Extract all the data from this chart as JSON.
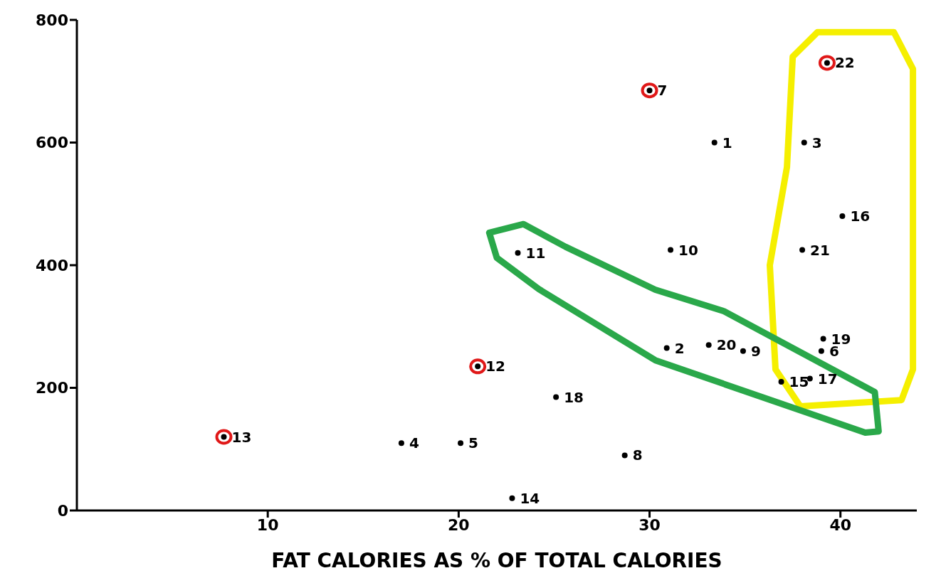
{
  "chart_data": {
    "type": "scatter",
    "xlabel": "FAT CALORIES AS % OF TOTAL CALORIES",
    "x": [
      33.4,
      30.9,
      38.1,
      17.0,
      20.1,
      39.0,
      30.0,
      28.7,
      34.9,
      31.1,
      23.1,
      21.0,
      7.7,
      22.8,
      36.9,
      40.1,
      38.4,
      25.1,
      39.1,
      33.1,
      38.0,
      39.3
    ],
    "series": [
      {
        "color": "#000000",
        "values": [
          600,
          265,
          600,
          110,
          110,
          260,
          685,
          90,
          260,
          425,
          420,
          235,
          120,
          20,
          210,
          480,
          215,
          185,
          280,
          270,
          425,
          730
        ]
      }
    ],
    "marker": "circle",
    "xlim": [
      0,
      44
    ],
    "xticks": [
      10,
      20,
      30,
      40
    ],
    "ylim": [
      0,
      800
    ],
    "yticks": [
      0,
      200,
      400,
      600,
      800
    ],
    "grid": false,
    "legend": false,
    "annotations": [
      {
        "text": "1",
        "x": 33.4,
        "y": 600
      },
      {
        "text": "2",
        "x": 30.9,
        "y": 265
      },
      {
        "text": "3",
        "x": 38.1,
        "y": 600
      },
      {
        "text": "4",
        "x": 17.0,
        "y": 110
      },
      {
        "text": "5",
        "x": 20.1,
        "y": 110
      },
      {
        "text": "6",
        "x": 39.0,
        "y": 260
      },
      {
        "text": "7",
        "x": 30.0,
        "y": 685
      },
      {
        "text": "8",
        "x": 28.7,
        "y": 90
      },
      {
        "text": "9",
        "x": 34.9,
        "y": 260
      },
      {
        "text": "10",
        "x": 31.1,
        "y": 425
      },
      {
        "text": "11",
        "x": 23.1,
        "y": 420
      },
      {
        "text": "12",
        "x": 21.0,
        "y": 235
      },
      {
        "text": "13",
        "x": 7.7,
        "y": 120
      },
      {
        "text": "14",
        "x": 22.8,
        "y": 20
      },
      {
        "text": "15",
        "x": 36.9,
        "y": 210
      },
      {
        "text": "16",
        "x": 40.1,
        "y": 480
      },
      {
        "text": "17",
        "x": 38.4,
        "y": 215
      },
      {
        "text": "18",
        "x": 25.1,
        "y": 185
      },
      {
        "text": "19",
        "x": 39.1,
        "y": 280
      },
      {
        "text": "20",
        "x": 33.1,
        "y": 270
      },
      {
        "text": "21",
        "x": 38.0,
        "y": 425
      },
      {
        "text": "22",
        "x": 39.3,
        "y": 730
      }
    ]
  }
}
